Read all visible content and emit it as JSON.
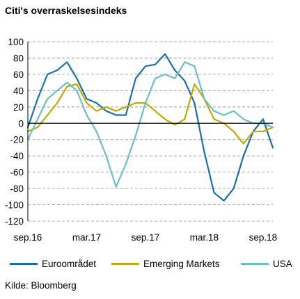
{
  "chart_data": {
    "type": "line",
    "title": "Citi's overraskelsesindeks",
    "source": "Kilde: Bloomberg",
    "xlabel": "",
    "ylabel": "",
    "ylim": [
      -120,
      100
    ],
    "yticks": [
      100,
      80,
      60,
      40,
      20,
      0,
      -20,
      -40,
      -60,
      -80,
      -100,
      -120
    ],
    "xticks": [
      "sep.16",
      "mar.17",
      "sep.17",
      "mar.18",
      "sep.18"
    ],
    "xrange": [
      "2016-09",
      "2018-10"
    ],
    "grid": "horizontal dashed",
    "legend_position": "bottom",
    "x": [
      "2016-09",
      "2016-10",
      "2016-11",
      "2016-12",
      "2017-01",
      "2017-02",
      "2017-03",
      "2017-04",
      "2017-05",
      "2017-06",
      "2017-07",
      "2017-08",
      "2017-09",
      "2017-10",
      "2017-11",
      "2017-12",
      "2018-01",
      "2018-02",
      "2018-03",
      "2018-04",
      "2018-05",
      "2018-06",
      "2018-07",
      "2018-08",
      "2018-09",
      "2018-10"
    ],
    "series": [
      {
        "name": "Euroområdet",
        "color": "#1a6fa8",
        "values": [
          -5,
          30,
          60,
          65,
          75,
          55,
          30,
          25,
          15,
          10,
          10,
          55,
          70,
          72,
          85,
          65,
          52,
          25,
          -35,
          -85,
          -95,
          -80,
          -40,
          -10,
          5,
          -30
        ]
      },
      {
        "name": "Emerging Markets",
        "color": "#c2a80a",
        "values": [
          -10,
          -5,
          10,
          25,
          45,
          48,
          25,
          15,
          20,
          15,
          20,
          25,
          25,
          15,
          5,
          -2,
          5,
          48,
          30,
          5,
          0,
          -10,
          -25,
          -10,
          -10,
          -5
        ]
      },
      {
        "name": "USA",
        "color": "#6cbec4",
        "values": [
          -20,
          5,
          30,
          40,
          50,
          40,
          10,
          -10,
          -40,
          -78,
          -50,
          -15,
          25,
          55,
          60,
          55,
          75,
          70,
          30,
          15,
          10,
          15,
          5,
          0,
          0,
          -5
        ]
      }
    ]
  }
}
